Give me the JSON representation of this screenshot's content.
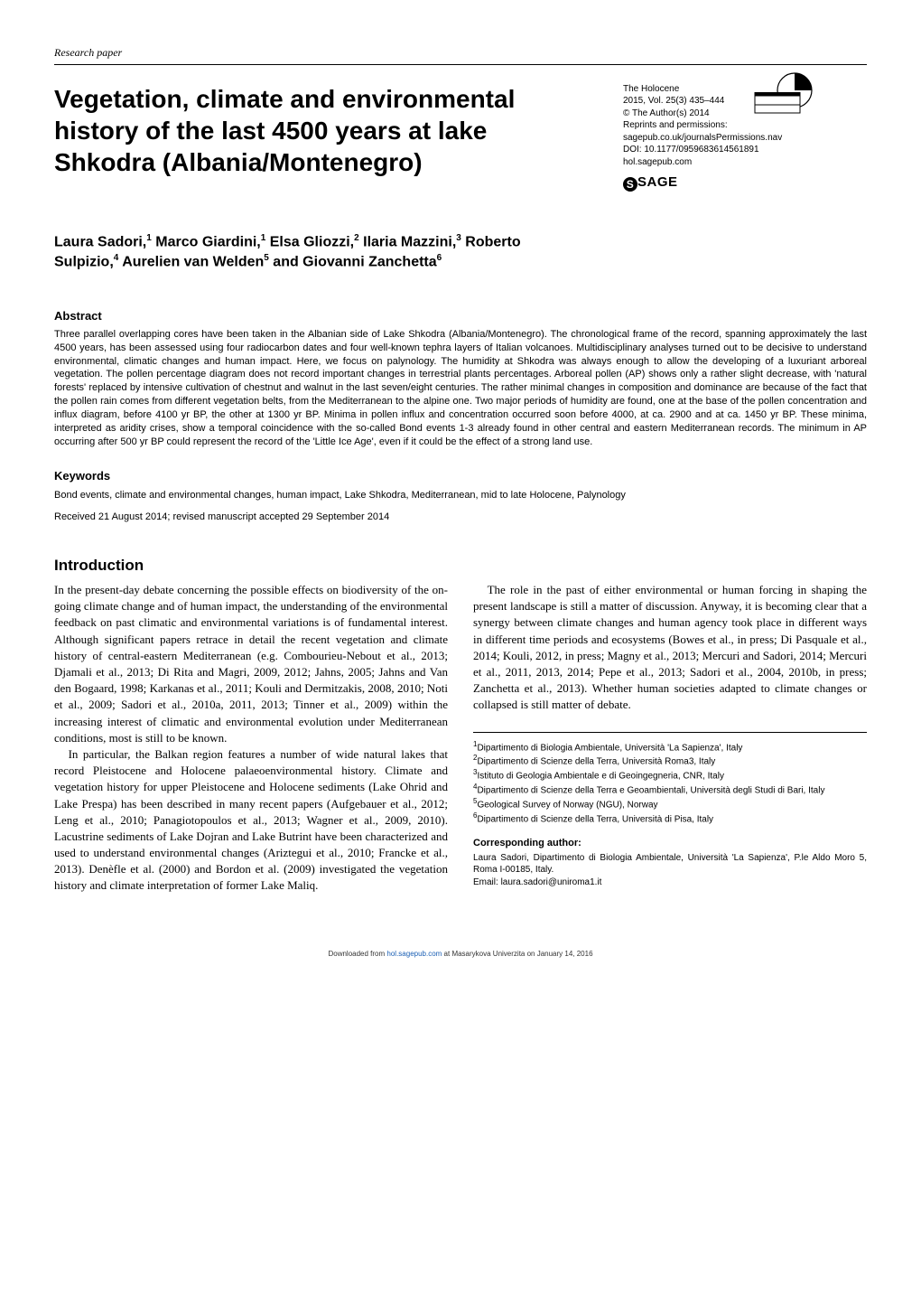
{
  "label": "Research paper",
  "title": "Vegetation, climate and environmental history of the last 4500 years at lake Shkodra (Albania/Montenegro)",
  "meta": {
    "journal": "The Holocene",
    "citation": "2015, Vol. 25(3) 435–444",
    "copyright": "© The Author(s) 2014",
    "reprints_label": "Reprints and permissions:",
    "reprints_url": "sagepub.co.uk/journalsPermissions.nav",
    "doi": "DOI: 10.1177/0959683614561891",
    "site": "hol.sagepub.com",
    "publisher_logo_text": "SAGE"
  },
  "authors_html": "Laura Sadori,<sup>1</sup> Marco Giardini,<sup>1</sup> Elsa Gliozzi,<sup>2</sup> Ilaria Mazzini,<sup>3</sup> Roberto Sulpizio,<sup>4</sup> Aurelien van Welden<sup>5</sup> and Giovanni Zanchetta<sup>6</sup>",
  "abstract": {
    "heading": "Abstract",
    "text": "Three parallel overlapping cores have been taken in the Albanian side of Lake Shkodra (Albania/Montenegro). The chronological frame of the record, spanning approximately the last 4500 years, has been assessed using four radiocarbon dates and four well-known tephra layers of Italian volcanoes. Multidisciplinary analyses turned out to be decisive to understand environmental, climatic changes and human impact. Here, we focus on palynology. The humidity at Shkodra was always enough to allow the developing of a luxuriant arboreal vegetation. The pollen percentage diagram does not record important changes in terrestrial plants percentages. Arboreal pollen (AP) shows only a rather slight decrease, with 'natural forests' replaced by intensive cultivation of chestnut and walnut in the last seven/eight centuries. The rather minimal changes in composition and dominance are because of the fact that the pollen rain comes from different vegetation belts, from the Mediterranean to the alpine one. Two major periods of humidity are found, one at the base of the pollen concentration and influx diagram, before 4100 yr BP, the other at 1300 yr BP. Minima in pollen influx and concentration occurred soon before 4000, at ca. 2900 and at ca. 1450 yr BP. These minima, interpreted as aridity crises, show a temporal coincidence with the so-called Bond events 1-3 already found in other central and eastern Mediterranean records. The minimum in AP occurring after 500 yr BP could represent the record of the 'Little Ice Age', even if it could be the effect of a strong land use."
  },
  "keywords": {
    "heading": "Keywords",
    "text": "Bond events, climate and environmental changes, human impact, Lake Shkodra, Mediterranean, mid to late Holocene, Palynology"
  },
  "received": "Received 21 August 2014; revised manuscript accepted 29 September 2014",
  "introduction": {
    "heading": "Introduction",
    "left_p1": "In the present-day debate concerning the possible effects on biodiversity of the on-going climate change and of human impact, the understanding of the environmental feedback on past climatic and environmental variations is of fundamental interest. Although significant papers retrace in detail the recent vegetation and climate history of central-eastern Mediterranean (e.g. Combourieu-Nebout et al., 2013; Djamali et al., 2013; Di Rita and Magri, 2009, 2012; Jahns, 2005; Jahns and Van den Bogaard, 1998; Karkanas et al., 2011; Kouli and Dermitzakis, 2008, 2010; Noti et al., 2009; Sadori et al., 2010a, 2011, 2013; Tinner et al., 2009) within the increasing interest of climatic and environmental evolution under Mediterranean conditions, most is still to be known.",
    "left_p2": "In particular, the Balkan region features a number of wide natural lakes that record Pleistocene and Holocene palaeoenvironmental history. Climate and vegetation history for upper Pleistocene and Holocene sediments (Lake Ohrid and Lake Prespa) has been described in many recent papers (Aufgebauer et al., 2012; Leng et al., 2010; Panagiotopoulos et al., 2013; Wagner et al., 2009, 2010). Lacustrine sediments of Lake Dojran and Lake Butrint have been characterized and used to understand environmental changes (Ariztegui et al., 2010; Francke et al., 2013). Denèfle et al. (2000) and Bordon et al. (2009) investigated the vegetation history and climate interpretation of former Lake Maliq.",
    "right_p1": "The role in the past of either environmental or human forcing in shaping the present landscape is still a matter of discussion. Anyway, it is becoming clear that a synergy between climate changes and human agency took place in different ways in different time periods and ecosystems (Bowes et al., in press; Di Pasquale et al., 2014; Kouli, 2012, in press; Magny et al., 2013; Mercuri and Sadori, 2014; Mercuri et al., 2011, 2013, 2014; Pepe et al., 2013; Sadori et al., 2004, 2010b, in press; Zanchetta et al., 2013). Whether human societies adapted to climate changes or collapsed is still matter of debate."
  },
  "affiliations": [
    "Dipartimento di Biologia Ambientale, Università 'La Sapienza', Italy",
    "Dipartimento di Scienze della Terra, Università Roma3, Italy",
    "Istituto di Geologia Ambientale e di Geoingegneria, CNR, Italy",
    "Dipartimento di Scienze della Terra e Geoambientali, Università degli Studi di Bari, Italy",
    "Geological Survey of Norway (NGU), Norway",
    "Dipartimento di Scienze della Terra, Università di Pisa, Italy"
  ],
  "corresponding": {
    "heading": "Corresponding author:",
    "text": "Laura Sadori, Dipartimento di Biologia Ambientale, Università 'La Sapienza', P.le Aldo Moro 5, Roma I-00185, Italy.",
    "email_label": "Email: ",
    "email": "laura.sadori@uniroma1.it"
  },
  "footer": {
    "prefix": "Downloaded from ",
    "link": "hol.sagepub.com",
    "suffix": " at Masarykova Univerzita on January 14, 2016"
  }
}
